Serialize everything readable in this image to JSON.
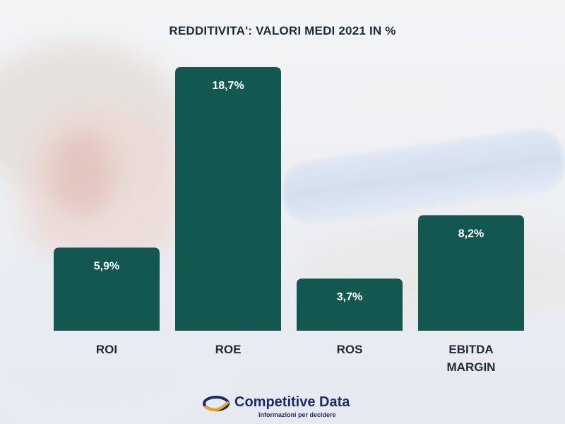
{
  "chart_data": {
    "type": "bar",
    "title": "REDDITIVITA': VALORI MEDI 2021 IN %",
    "categories": [
      "ROI",
      "ROE",
      "ROS",
      "EBITDA MARGIN"
    ],
    "category_lines": [
      [
        "ROI"
      ],
      [
        "ROE"
      ],
      [
        "ROS"
      ],
      [
        "EBITDA",
        "MARGIN"
      ]
    ],
    "values": [
      5.9,
      18.7,
      3.7,
      8.2
    ],
    "value_labels": [
      "5,9%",
      "18,7%",
      "3,7%",
      "8,2%"
    ],
    "ylim": [
      0,
      18.7
    ],
    "bar_color": "#135751",
    "grid": false,
    "legend": "none"
  },
  "logo": {
    "name": "Competitive Data",
    "tagline": "Informazioni per decidere",
    "colors": {
      "primary": "#1b2c6b",
      "accent": "#f2a71b"
    }
  }
}
